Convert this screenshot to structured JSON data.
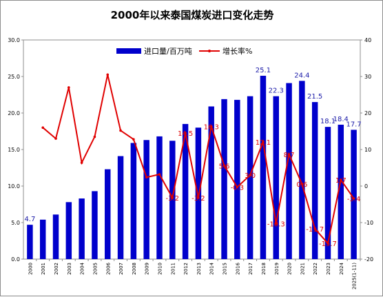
{
  "chart_data": {
    "type": "bar",
    "title": "2000年以来泰国煤炭进口变化走势",
    "categories": [
      "2000",
      "2001",
      "2002",
      "2003",
      "2004",
      "2005",
      "2006",
      "2007",
      "2008",
      "2009",
      "2010",
      "2011",
      "2012",
      "2013",
      "2014",
      "2015",
      "2016",
      "2017",
      "2018",
      "2019",
      "2020",
      "2021",
      "2022",
      "2023",
      "2024",
      "2025(1-11)"
    ],
    "series": [
      {
        "name": "进口量/百万吨",
        "type": "bar",
        "axis": "left",
        "color": "#0000cc",
        "values": [
          4.7,
          5.4,
          6.1,
          7.8,
          8.3,
          9.3,
          12.3,
          14.1,
          15.9,
          16.3,
          16.8,
          16.2,
          18.5,
          18.0,
          20.9,
          21.9,
          21.8,
          22.3,
          25.1,
          22.3,
          24.1,
          24.4,
          21.5,
          18.1,
          18.4,
          17.7
        ]
      },
      {
        "name": "增长率%",
        "type": "line",
        "axis": "right",
        "color": "#e00000",
        "values": [
          null,
          16.0,
          13.0,
          27.0,
          6.4,
          13.5,
          30.5,
          15.2,
          12.8,
          2.4,
          3.2,
          -3.2,
          14.5,
          -3.2,
          16.3,
          5.6,
          -0.3,
          3.0,
          12.1,
          -10.3,
          8.7,
          0.6,
          -11.7,
          -15.7,
          1.7,
          -3.4
        ]
      }
    ],
    "bar_labels": [
      {
        "index": 0,
        "text": "4.7"
      },
      {
        "index": 18,
        "text": "25.1"
      },
      {
        "index": 19,
        "text": "22.3"
      },
      {
        "index": 21,
        "text": "24.4"
      },
      {
        "index": 22,
        "text": "21.5"
      },
      {
        "index": 23,
        "text": "18.1"
      },
      {
        "index": 24,
        "text": "18.4"
      },
      {
        "index": 25,
        "text": "17.7"
      }
    ],
    "rate_labels": [
      {
        "index": 11,
        "text": "-3.2"
      },
      {
        "index": 12,
        "text": "14.5"
      },
      {
        "index": 13,
        "text": "-3.2"
      },
      {
        "index": 14,
        "text": "16.3"
      },
      {
        "index": 15,
        "text": "5.6"
      },
      {
        "index": 16,
        "text": "-0.3"
      },
      {
        "index": 17,
        "text": "3.0"
      },
      {
        "index": 18,
        "text": "12.1"
      },
      {
        "index": 19,
        "text": "-10.3"
      },
      {
        "index": 20,
        "text": "8.7"
      },
      {
        "index": 21,
        "text": "0.6"
      },
      {
        "index": 22,
        "text": "-11.7"
      },
      {
        "index": 23,
        "text": "-15.7"
      },
      {
        "index": 24,
        "text": "1.7"
      },
      {
        "index": 25,
        "text": "-3.4"
      }
    ],
    "y_left": {
      "ylim": [
        0,
        30
      ],
      "ticks": [
        "0.0",
        "5.0",
        "10.0",
        "15.0",
        "20.0",
        "25.0",
        "30.0"
      ]
    },
    "y_right": {
      "ylim": [
        -20,
        40
      ],
      "ticks": [
        "-20",
        "-10",
        "0",
        "10",
        "20",
        "30",
        "40"
      ]
    },
    "legend_placement": "top-center",
    "grid": false
  }
}
